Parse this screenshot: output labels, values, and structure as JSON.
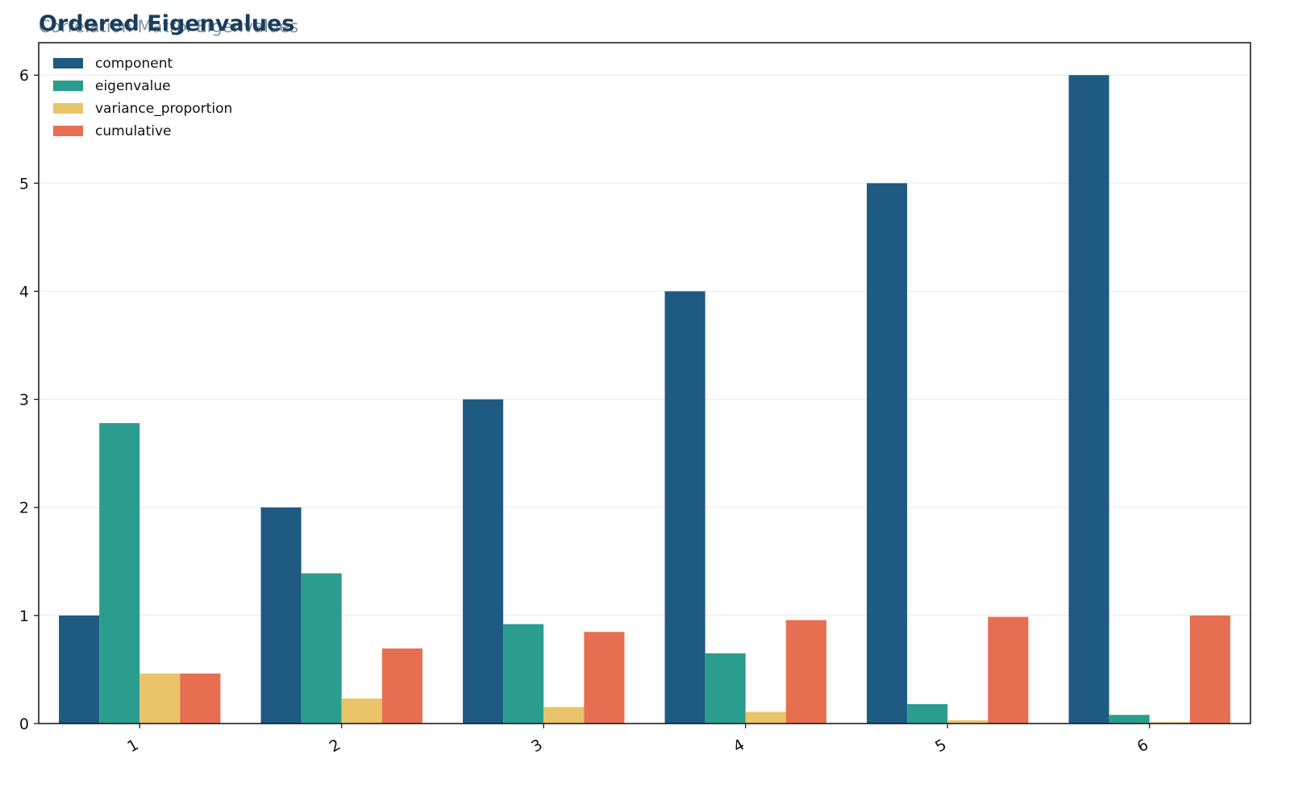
{
  "chart_data": {
    "type": "bar",
    "title": "Ordered Eigenvalues",
    "subtitle": "Correlation Matrix Eigenvalues",
    "xlabel": "",
    "ylabel": "",
    "categories": [
      "1",
      "2",
      "3",
      "4",
      "5",
      "6"
    ],
    "ylim": [
      0,
      6.3
    ],
    "yticks": [
      0,
      1,
      2,
      3,
      4,
      5,
      6
    ],
    "grid": true,
    "legend_position": "top-left",
    "series": [
      {
        "name": "component",
        "color": "#1f5a82",
        "values": [
          1,
          2,
          3,
          4,
          5,
          6
        ]
      },
      {
        "name": "eigenvalue",
        "color": "#2a9d8f",
        "values": [
          2.78,
          1.39,
          0.92,
          0.65,
          0.18,
          0.08
        ]
      },
      {
        "name": "variance_proportion",
        "color": "#e9c46a",
        "values": [
          0.463,
          0.232,
          0.153,
          0.108,
          0.03,
          0.013
        ]
      },
      {
        "name": "cumulative",
        "color": "#e76f51",
        "values": [
          0.463,
          0.695,
          0.848,
          0.957,
          0.987,
          1.0
        ]
      }
    ]
  }
}
